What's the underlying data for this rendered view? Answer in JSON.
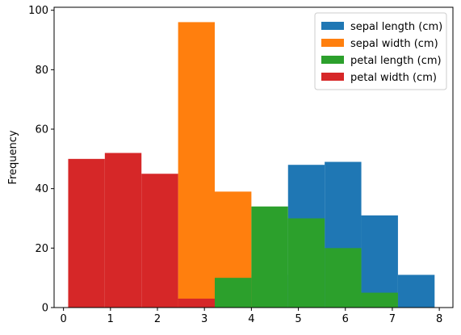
{
  "chart_data": {
    "type": "histogram",
    "title": "",
    "xlabel": "",
    "ylabel": "Frequency",
    "xlim": [
      -0.2,
      8.29
    ],
    "ylim": [
      0,
      101
    ],
    "x_ticks": [
      0,
      1,
      2,
      3,
      4,
      5,
      6,
      7,
      8
    ],
    "y_ticks": [
      0,
      20,
      40,
      60,
      80,
      100
    ],
    "grid": false,
    "legend": {
      "position": "top-right"
    },
    "bin_edges": [
      0.1,
      0.88,
      1.66,
      2.44,
      3.22,
      4.0,
      4.78,
      5.56,
      6.34,
      7.12,
      7.9
    ],
    "series": [
      {
        "name": "sepal length (cm)",
        "color": "#1f77b4",
        "values": [
          0,
          0,
          0,
          0,
          0,
          11,
          48,
          49,
          31,
          11
        ]
      },
      {
        "name": "sepal width (cm)",
        "color": "#ff7f0e",
        "values": [
          0,
          0,
          0,
          96,
          39,
          0,
          0,
          0,
          0,
          0
        ]
      },
      {
        "name": "petal length (cm)",
        "color": "#2ca02c",
        "values": [
          0,
          0,
          0,
          0,
          10,
          34,
          30,
          20,
          5,
          0
        ]
      },
      {
        "name": "petal width (cm)",
        "color": "#d62728",
        "values": [
          50,
          52,
          45,
          3,
          0,
          0,
          0,
          0,
          0,
          0
        ]
      }
    ]
  }
}
